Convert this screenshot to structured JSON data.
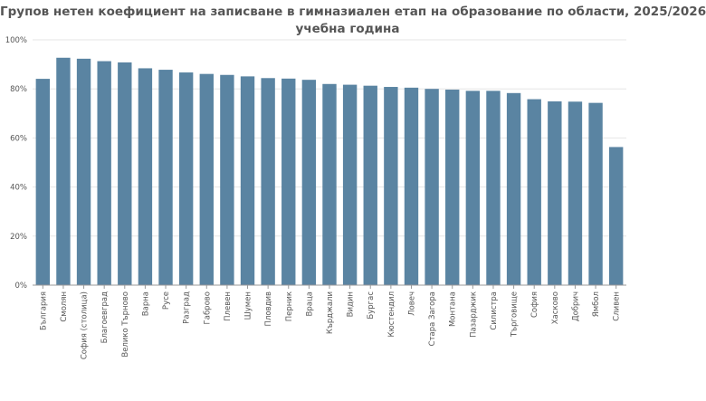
{
  "chart_data": {
    "type": "bar",
    "title_lines": [
      "Групов нетен коефициент на записване в гимназиален етап на образование по области, 2025/2026",
      "учебна година"
    ],
    "xlabel": "",
    "ylabel": "",
    "ylim": [
      0,
      100
    ],
    "yticks": [
      0,
      20,
      40,
      60,
      80,
      100
    ],
    "ytick_labels": [
      "0%",
      "20%",
      "40%",
      "60%",
      "80%",
      "100%"
    ],
    "grid": true,
    "legend": "none",
    "bar_color": "#5a84a2",
    "categories": [
      "България",
      "Смолян",
      "София (столица)",
      "Благоевград",
      "Велико Търново",
      "Варна",
      "Русе",
      "Разград",
      "Габрово",
      "Плевен",
      "Шумен",
      "Пловдив",
      "Перник",
      "Враца",
      "Кърджали",
      "Видин",
      "Бургас",
      "Кюстендил",
      "Ловеч",
      "Стара Загора",
      "Монтана",
      "Пазарджик",
      "Силистра",
      "Търговище",
      "София",
      "Хасково",
      "Добрич",
      "Ямбол",
      "Сливен"
    ],
    "values": [
      84.1,
      92.7,
      92.3,
      91.3,
      90.8,
      88.4,
      87.8,
      86.7,
      86.1,
      85.7,
      85.1,
      84.4,
      84.2,
      83.7,
      82.0,
      81.7,
      81.3,
      80.8,
      80.5,
      80.0,
      79.7,
      79.2,
      79.2,
      78.3,
      75.8,
      74.9,
      74.8,
      74.3,
      56.3
    ]
  }
}
